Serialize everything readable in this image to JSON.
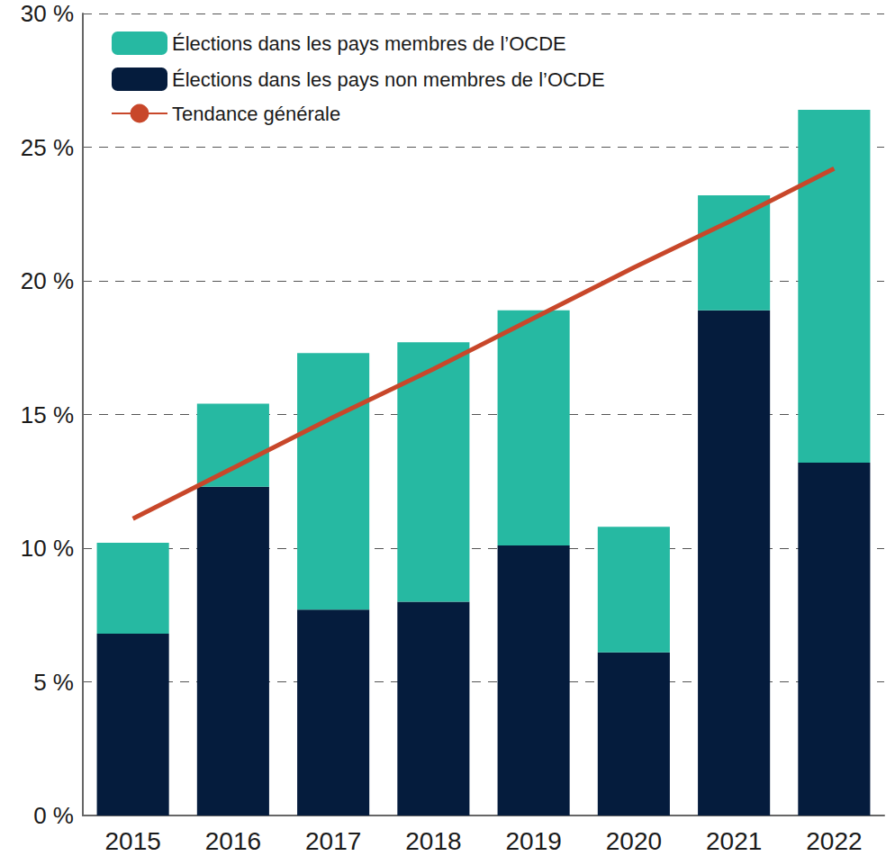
{
  "chart_data": {
    "type": "bar",
    "stacked": true,
    "grid": true,
    "legend": "top-left",
    "categories": [
      "2015",
      "2016",
      "2017",
      "2018",
      "2019",
      "2020",
      "2021",
      "2022"
    ],
    "series": [
      {
        "name": "Élections dans les pays non membres de l’OCDE",
        "color": "#051c3d",
        "type": "bar",
        "values": [
          6.8,
          12.3,
          7.7,
          8.0,
          10.1,
          6.1,
          18.9,
          13.2
        ]
      },
      {
        "name": "Élections dans les pays membres de l’OCDE",
        "color": "#26b9a2",
        "type": "bar",
        "values": [
          3.4,
          3.1,
          9.6,
          9.7,
          8.8,
          4.7,
          4.3,
          13.2
        ]
      },
      {
        "name": "Tendance générale",
        "color": "#c8472a",
        "type": "line",
        "marker": "none",
        "values": [
          11.1,
          13.0,
          14.9,
          16.7,
          18.6,
          20.5,
          22.3,
          24.2
        ]
      }
    ],
    "legend_order": [
      "Élections dans les pays membres de l’OCDE",
      "Élections dans les pays non membres de l’OCDE",
      "Tendance générale"
    ],
    "ylim": [
      0,
      30
    ],
    "yticks": [
      {
        "value": 0,
        "label": "0 %"
      },
      {
        "value": 5,
        "label": "5 %"
      },
      {
        "value": 10,
        "label": "10 %"
      },
      {
        "value": 15,
        "label": "15 %"
      },
      {
        "value": 20,
        "label": "20 %"
      },
      {
        "value": 25,
        "label": "25 %"
      },
      {
        "value": 30,
        "label": "30 %"
      }
    ]
  }
}
